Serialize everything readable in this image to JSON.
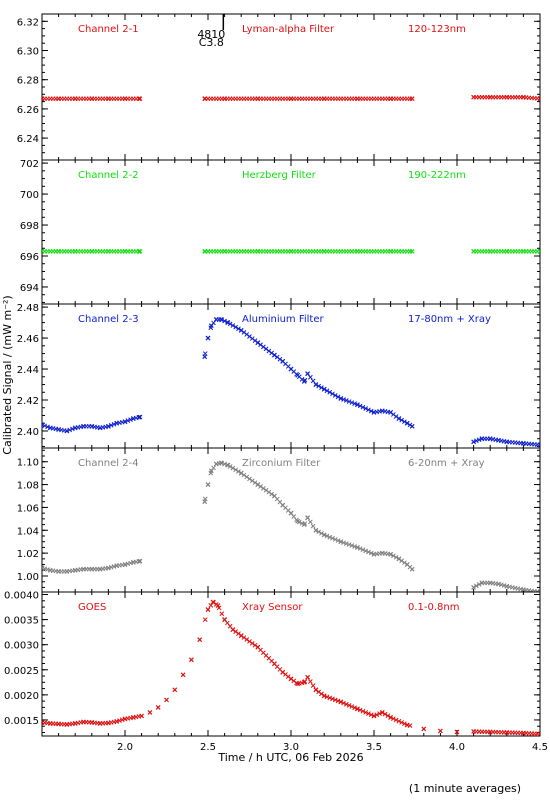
{
  "figure": {
    "ylabel": "Calibrated Signal / (mW m⁻²)",
    "xlabel": "Time / h UTC, 06 Feb 2026",
    "footnote": "(1 minute averages)",
    "marker_text_top": "4810",
    "marker_text_bottom": "C3.8",
    "marker_time": 2.52,
    "xlim": [
      1.5,
      4.5
    ],
    "xticks": [
      "2.0",
      "2.5",
      "3.0",
      "3.5",
      "4.0",
      "4.5"
    ],
    "xtick_values": [
      2.0,
      2.5,
      3.0,
      3.5,
      4.0,
      4.5
    ]
  },
  "chart_data": [
    {
      "type": "scatter",
      "labels": {
        "channel": "Channel 2-1",
        "filter": "Lyman-alpha Filter",
        "band": "120-123nm"
      },
      "color": "#e01010",
      "ylim": [
        6.225,
        6.325
      ],
      "yticks": [
        "6.24",
        "6.26",
        "6.28",
        "6.30",
        "6.32"
      ],
      "ytick_values": [
        6.24,
        6.26,
        6.28,
        6.3,
        6.32
      ],
      "series": [
        {
          "x": [
            1.5,
            1.6,
            1.7,
            1.8,
            1.9,
            2.0,
            2.09,
            2.48,
            2.6,
            2.8,
            3.0,
            3.2,
            3.4,
            3.6,
            3.73,
            4.1,
            4.2,
            4.3,
            4.4,
            4.5
          ],
          "y": [
            6.267,
            6.267,
            6.267,
            6.267,
            6.267,
            6.267,
            6.267,
            6.267,
            6.267,
            6.267,
            6.267,
            6.267,
            6.267,
            6.267,
            6.267,
            6.268,
            6.268,
            6.268,
            6.268,
            6.267
          ]
        }
      ]
    },
    {
      "type": "scatter",
      "labels": {
        "channel": "Channel 2-2",
        "filter": "Herzberg Filter",
        "band": "190-222nm"
      },
      "color": "#10e010",
      "ylim": [
        692.9,
        702.2
      ],
      "yticks": [
        "694",
        "696",
        "698",
        "700",
        "702"
      ],
      "ytick_values": [
        694,
        696,
        698,
        700,
        702
      ],
      "series": [
        {
          "x": [
            1.5,
            1.6,
            1.7,
            1.8,
            1.9,
            2.0,
            2.09,
            2.48,
            2.6,
            2.8,
            3.0,
            3.2,
            3.4,
            3.6,
            3.73,
            4.1,
            4.2,
            4.3,
            4.4,
            4.5
          ],
          "y": [
            696.3,
            696.3,
            696.3,
            696.3,
            696.3,
            696.3,
            696.3,
            696.3,
            696.3,
            696.3,
            696.3,
            696.3,
            696.3,
            696.3,
            696.3,
            696.3,
            696.3,
            696.3,
            696.3,
            696.3
          ]
        }
      ]
    },
    {
      "type": "scatter",
      "labels": {
        "channel": "Channel 2-3",
        "filter": "Aluminium Filter",
        "band": "17-80nm + Xray"
      },
      "color": "#1020d0",
      "ylim": [
        2.389,
        2.482
      ],
      "yticks": [
        "2.40",
        "2.42",
        "2.44",
        "2.46",
        "2.48"
      ],
      "ytick_values": [
        2.4,
        2.42,
        2.44,
        2.46,
        2.48
      ],
      "series": [
        {
          "x": [
            1.5,
            1.55,
            1.6,
            1.65,
            1.7,
            1.75,
            1.8,
            1.85,
            1.9,
            1.95,
            2.0,
            2.05,
            2.09,
            2.48,
            2.5,
            2.52,
            2.55,
            2.58,
            2.62,
            2.7,
            2.8,
            2.9,
            2.95,
            3.0,
            3.04,
            3.08,
            3.1,
            3.15,
            3.2,
            3.3,
            3.4,
            3.5,
            3.55,
            3.6,
            3.65,
            3.7,
            3.73,
            4.1,
            4.15,
            4.2,
            4.25,
            4.3,
            4.4,
            4.5
          ],
          "y": [
            2.404,
            2.402,
            2.401,
            2.4,
            2.402,
            2.403,
            2.403,
            2.402,
            2.403,
            2.405,
            2.406,
            2.408,
            2.409,
            2.448,
            2.46,
            2.468,
            2.472,
            2.472,
            2.47,
            2.465,
            2.457,
            2.449,
            2.445,
            2.44,
            2.436,
            2.432,
            2.437,
            2.43,
            2.427,
            2.421,
            2.417,
            2.412,
            2.413,
            2.412,
            2.408,
            2.405,
            2.403,
            2.393,
            2.395,
            2.395,
            2.394,
            2.393,
            2.392,
            2.391
          ]
        }
      ]
    },
    {
      "type": "scatter",
      "labels": {
        "channel": "Channel 2-4",
        "filter": "Zirconium Filter",
        "band": "6-20nm + Xray"
      },
      "color": "#808080",
      "ylim": [
        0.986,
        1.112
      ],
      "yticks": [
        "1.00",
        "1.02",
        "1.04",
        "1.06",
        "1.08",
        "1.10"
      ],
      "ytick_values": [
        1.0,
        1.02,
        1.04,
        1.06,
        1.08,
        1.1
      ],
      "series": [
        {
          "x": [
            1.5,
            1.55,
            1.6,
            1.65,
            1.7,
            1.75,
            1.8,
            1.85,
            1.9,
            1.95,
            2.0,
            2.05,
            2.09,
            2.48,
            2.5,
            2.52,
            2.55,
            2.58,
            2.62,
            2.7,
            2.8,
            2.9,
            2.95,
            3.0,
            3.04,
            3.08,
            3.1,
            3.15,
            3.2,
            3.3,
            3.4,
            3.5,
            3.55,
            3.6,
            3.65,
            3.7,
            3.73,
            4.1,
            4.15,
            4.2,
            4.25,
            4.3,
            4.4,
            4.5
          ],
          "y": [
            1.007,
            1.005,
            1.004,
            1.004,
            1.005,
            1.006,
            1.006,
            1.006,
            1.007,
            1.009,
            1.01,
            1.012,
            1.013,
            1.065,
            1.08,
            1.092,
            1.098,
            1.099,
            1.097,
            1.09,
            1.08,
            1.07,
            1.062,
            1.055,
            1.048,
            1.045,
            1.051,
            1.04,
            1.036,
            1.03,
            1.025,
            1.019,
            1.02,
            1.019,
            1.015,
            1.01,
            1.006,
            0.99,
            0.994,
            0.994,
            0.993,
            0.991,
            0.988,
            0.986
          ]
        }
      ]
    },
    {
      "type": "scatter",
      "labels": {
        "channel": "GOES",
        "filter": "Xray Sensor",
        "band": "0.1-0.8nm"
      },
      "color": "#e01010",
      "ylim": [
        0.00118,
        0.00405
      ],
      "yticks": [
        "0.0015",
        "0.0020",
        "0.0025",
        "0.0030",
        "0.0035",
        "0.0040"
      ],
      "ytick_values": [
        0.0015,
        0.002,
        0.0025,
        0.003,
        0.0035,
        0.004
      ],
      "series": [
        {
          "x": [
            1.5,
            1.55,
            1.6,
            1.65,
            1.7,
            1.75,
            1.8,
            1.85,
            1.9,
            1.95,
            2.0,
            2.05,
            2.1,
            2.15,
            2.2,
            2.25,
            2.3,
            2.35,
            2.4,
            2.45,
            2.5,
            2.53,
            2.56,
            2.6,
            2.65,
            2.7,
            2.8,
            2.9,
            2.95,
            3.0,
            3.04,
            3.08,
            3.1,
            3.15,
            3.2,
            3.3,
            3.4,
            3.5,
            3.55,
            3.6,
            3.7,
            3.8,
            3.9,
            4.0,
            4.1,
            4.2,
            4.3,
            4.4,
            4.5
          ],
          "y": [
            0.00145,
            0.00143,
            0.00142,
            0.00141,
            0.00143,
            0.00146,
            0.00145,
            0.00143,
            0.00144,
            0.00147,
            0.00152,
            0.00155,
            0.00158,
            0.00165,
            0.00175,
            0.0019,
            0.0021,
            0.0024,
            0.0027,
            0.0031,
            0.0037,
            0.00385,
            0.00378,
            0.0035,
            0.0033,
            0.00318,
            0.00295,
            0.00262,
            0.00245,
            0.00232,
            0.00222,
            0.00225,
            0.00235,
            0.0021,
            0.00198,
            0.00186,
            0.00172,
            0.00158,
            0.00165,
            0.00155,
            0.0014,
            0.00132,
            0.00128,
            0.00126,
            0.00127,
            0.00126,
            0.00125,
            0.00124,
            0.00122
          ]
        }
      ]
    }
  ]
}
